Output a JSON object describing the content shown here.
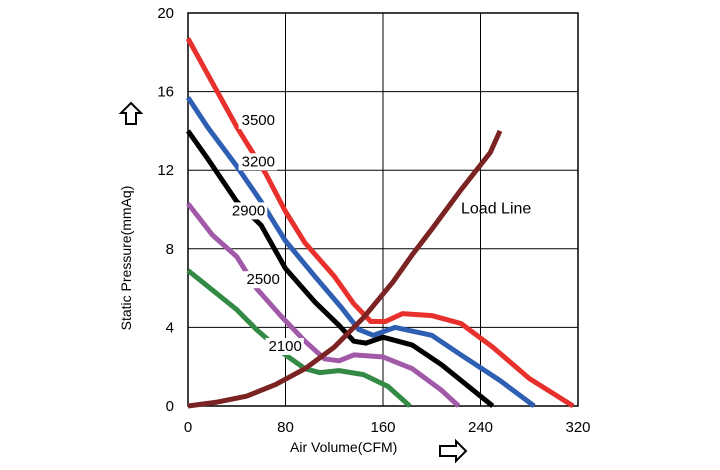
{
  "chart_data": {
    "type": "line",
    "title": "",
    "xlabel": "Air Volume(CFM)",
    "ylabel": "Static Pressure(mmAq)",
    "xlim": [
      0,
      320
    ],
    "ylim": [
      0,
      20
    ],
    "x_ticks": [
      0,
      80,
      160,
      240,
      320
    ],
    "y_ticks": [
      0,
      4,
      8,
      12,
      16,
      20
    ],
    "x_tick_labels": [
      "0",
      "80",
      "160",
      "240",
      "320"
    ],
    "y_tick_labels": [
      "0",
      "4",
      "8",
      "12",
      "16",
      "20"
    ],
    "grid": true,
    "series": [
      {
        "name": "3500",
        "color": "#e8302c",
        "points": [
          [
            0,
            18.7
          ],
          [
            16,
            16.9
          ],
          [
            40,
            14.2
          ],
          [
            64,
            11.8
          ],
          [
            80,
            9.9
          ],
          [
            96,
            8.3
          ],
          [
            120,
            6.6
          ],
          [
            136,
            5.2
          ],
          [
            150,
            4.3
          ],
          [
            162,
            4.3
          ],
          [
            176,
            4.7
          ],
          [
            200,
            4.6
          ],
          [
            224,
            4.2
          ],
          [
            250,
            3.0
          ],
          [
            280,
            1.4
          ],
          [
            316,
            0.0
          ]
        ]
      },
      {
        "name": "3200",
        "color": "#2f5fb3",
        "points": [
          [
            0,
            15.7
          ],
          [
            16,
            14.2
          ],
          [
            40,
            12.2
          ],
          [
            60,
            10.4
          ],
          [
            80,
            8.4
          ],
          [
            104,
            6.6
          ],
          [
            126,
            5.0
          ],
          [
            140,
            3.9
          ],
          [
            152,
            3.6
          ],
          [
            170,
            4.0
          ],
          [
            200,
            3.6
          ],
          [
            224,
            2.6
          ],
          [
            256,
            1.3
          ],
          [
            284,
            0.0
          ]
        ]
      },
      {
        "name": "2900",
        "color": "#000000",
        "points": [
          [
            0,
            14.0
          ],
          [
            16,
            12.6
          ],
          [
            40,
            10.4
          ],
          [
            60,
            9.2
          ],
          [
            80,
            7.0
          ],
          [
            104,
            5.3
          ],
          [
            124,
            4.1
          ],
          [
            136,
            3.3
          ],
          [
            146,
            3.2
          ],
          [
            160,
            3.5
          ],
          [
            184,
            3.1
          ],
          [
            208,
            2.1
          ],
          [
            232,
            0.9
          ],
          [
            250,
            0.0
          ]
        ]
      },
      {
        "name": "2500",
        "color": "#a05aa8",
        "points": [
          [
            0,
            10.3
          ],
          [
            20,
            8.7
          ],
          [
            40,
            7.6
          ],
          [
            56,
            6.0
          ],
          [
            76,
            4.6
          ],
          [
            96,
            3.3
          ],
          [
            112,
            2.4
          ],
          [
            124,
            2.3
          ],
          [
            136,
            2.6
          ],
          [
            160,
            2.5
          ],
          [
            184,
            1.9
          ],
          [
            208,
            0.8
          ],
          [
            222,
            0.0
          ]
        ]
      },
      {
        "name": "2100",
        "color": "#338a44",
        "points": [
          [
            0,
            6.9
          ],
          [
            20,
            5.9
          ],
          [
            40,
            4.9
          ],
          [
            56,
            3.9
          ],
          [
            80,
            2.6
          ],
          [
            96,
            1.9
          ],
          [
            108,
            1.7
          ],
          [
            124,
            1.8
          ],
          [
            144,
            1.6
          ],
          [
            164,
            1.0
          ],
          [
            182,
            0.0
          ]
        ]
      },
      {
        "name": "Load Line",
        "color": "#7b2222",
        "points": [
          [
            0,
            0.0
          ],
          [
            24,
            0.2
          ],
          [
            48,
            0.5
          ],
          [
            72,
            1.1
          ],
          [
            96,
            1.9
          ],
          [
            120,
            3.0
          ],
          [
            144,
            4.5
          ],
          [
            168,
            6.3
          ],
          [
            184,
            7.7
          ],
          [
            200,
            9.0
          ],
          [
            224,
            11.0
          ],
          [
            248,
            12.9
          ],
          [
            256,
            14.0
          ]
        ]
      }
    ],
    "curve_labels": [
      {
        "text": "3500",
        "x": 44,
        "y": 14.3
      },
      {
        "text": "3200",
        "x": 44,
        "y": 12.2
      },
      {
        "text": "2900",
        "x": 36,
        "y": 9.7
      },
      {
        "text": "2500",
        "x": 48,
        "y": 6.2
      },
      {
        "text": "2100",
        "x": 66,
        "y": 2.8
      },
      {
        "text": "Load Line",
        "x": 224,
        "y": 9.8
      }
    ]
  }
}
